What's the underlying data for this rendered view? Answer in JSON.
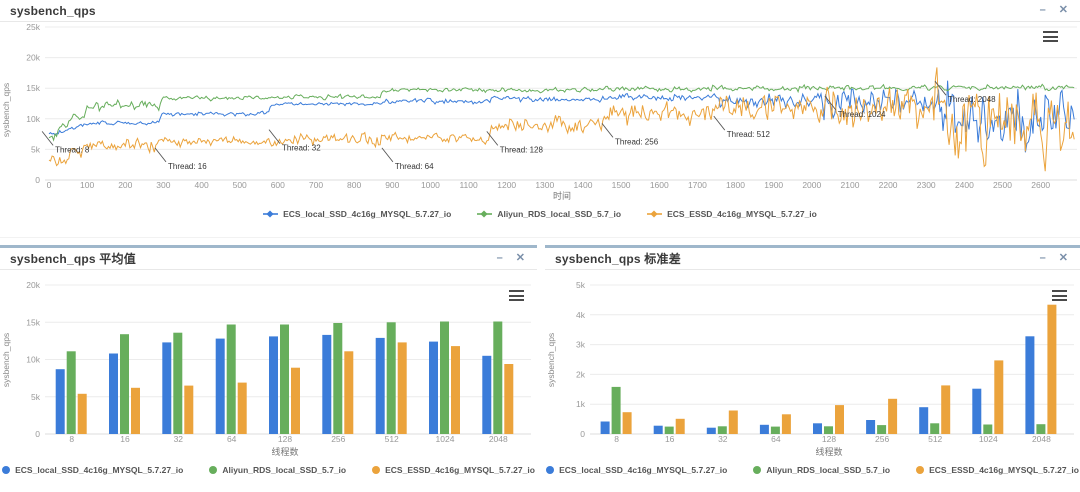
{
  "header_icons": {
    "minimize": "–",
    "close": "✕"
  },
  "colors": {
    "blue": "#3b7cd9",
    "green": "#67ae5c",
    "orange": "#eba33c",
    "panel_border_top": "#9fb7cb",
    "grid": "#ececec",
    "axis_zero_line": "#dddddd",
    "axis_text": "#999999",
    "title_text": "#3a3a3a",
    "legend_text": "#555555",
    "annotation_text": "#333333",
    "header_icon": "#7a8fa9",
    "menu_icon": "#4a4a4a"
  },
  "panels": {
    "top": {
      "title": "sysbench_qps"
    },
    "bottom_left": {
      "title": "sysbench_qps 平均值"
    },
    "bottom_right": {
      "title": "sysbench_qps 标准差"
    }
  },
  "chart_data": [
    {
      "type": "line",
      "panel": "top",
      "title": "sysbench_qps",
      "xlabel": "时间",
      "ylabel": "sysbench_qps",
      "xlim": [
        0,
        2690
      ],
      "ylim": [
        0,
        25000
      ],
      "grid": true,
      "legend_position": "bottom",
      "x_ticks": [
        0,
        100,
        200,
        300,
        400,
        500,
        600,
        700,
        800,
        900,
        1000,
        1100,
        1200,
        1300,
        1400,
        1500,
        1600,
        1700,
        1800,
        1900,
        2000,
        2100,
        2200,
        2300,
        2400,
        2500,
        2600
      ],
      "y_ticks": [
        0,
        5000,
        10000,
        15000,
        20000,
        25000
      ],
      "y_tick_labels": [
        "0",
        "5k",
        "10k",
        "15k",
        "20k",
        "25k"
      ],
      "thread_steps": [
        8,
        16,
        32,
        64,
        128,
        256,
        512,
        1024,
        2048
      ],
      "segment_start_times": [
        0,
        290,
        580,
        870,
        1160,
        1450,
        1740,
        2030,
        2320
      ],
      "series": [
        {
          "name": "ECS_local_SSD_4c16g_MYSQL_5.7.27_io",
          "color_key": "blue",
          "start_value": 7500,
          "segment_means": [
            9300,
            10900,
            12400,
            12900,
            13200,
            13400,
            13000,
            12500,
            10600
          ],
          "segment_stds": [
            250,
            280,
            210,
            310,
            360,
            470,
            900,
            1520,
            3280
          ]
        },
        {
          "name": "Aliyun_RDS_local_SSD_5.7_io",
          "color_key": "green",
          "start_value": 7000,
          "segment_means": [
            12200,
            13400,
            13600,
            14700,
            14700,
            14900,
            15000,
            15100,
            15100
          ],
          "segment_stds": [
            600,
            250,
            260,
            250,
            260,
            300,
            360,
            320,
            330
          ]
        },
        {
          "name": "ECS_ESSD_4c16g_MYSQL_5.7.27_io",
          "color_key": "orange",
          "start_value": 2500,
          "segment_means": [
            5600,
            6200,
            6500,
            6900,
            8900,
            11100,
            12300,
            11800,
            9400
          ],
          "segment_stds": [
            700,
            510,
            790,
            660,
            970,
            1180,
            1630,
            2470,
            4340
          ]
        }
      ],
      "annotations": [
        {
          "label": "Thread: 8",
          "t": 16,
          "v": 5000
        },
        {
          "label": "Thread: 16",
          "t": 312,
          "v": 2300
        },
        {
          "label": "Thread: 32",
          "t": 611,
          "v": 5300
        },
        {
          "label": "Thread: 64",
          "t": 907,
          "v": 2300
        },
        {
          "label": "Thread: 128",
          "t": 1182,
          "v": 5000
        },
        {
          "label": "Thread: 256",
          "t": 1484,
          "v": 6300
        },
        {
          "label": "Thread: 512",
          "t": 1777,
          "v": 7500
        },
        {
          "label": "Thread: 1024",
          "t": 2068,
          "v": 10800
        },
        {
          "label": "Thread: 2048",
          "t": 2357,
          "v": 13200
        }
      ]
    },
    {
      "type": "bar",
      "panel": "bottom_left",
      "title": "sysbench_qps 平均值",
      "xlabel": "线程数",
      "ylabel": "sysbench_qps",
      "ylim": [
        0,
        20000
      ],
      "grid": true,
      "legend_position": "bottom",
      "categories": [
        "8",
        "16",
        "32",
        "64",
        "128",
        "256",
        "512",
        "1024",
        "2048"
      ],
      "y_ticks": [
        0,
        5000,
        10000,
        15000,
        20000
      ],
      "y_tick_labels": [
        "0",
        "5k",
        "10k",
        "15k",
        "20k"
      ],
      "series": [
        {
          "name": "ECS_local_SSD_4c16g_MYSQL_5.7.27_io",
          "color_key": "blue",
          "values": [
            8700,
            10800,
            12300,
            12800,
            13100,
            13300,
            12900,
            12400,
            10500
          ]
        },
        {
          "name": "Aliyun_RDS_local_SSD_5.7_io",
          "color_key": "green",
          "values": [
            11100,
            13400,
            13600,
            14700,
            14700,
            14900,
            15000,
            15100,
            15100
          ]
        },
        {
          "name": "ECS_ESSD_4c16g_MYSQL_5.7.27_io",
          "color_key": "orange",
          "values": [
            5400,
            6200,
            6500,
            6900,
            8900,
            11100,
            12300,
            11800,
            9400
          ]
        }
      ]
    },
    {
      "type": "bar",
      "panel": "bottom_right",
      "title": "sysbench_qps 标准差",
      "xlabel": "线程数",
      "ylabel": "sysbench_qps",
      "ylim": [
        0,
        5000
      ],
      "grid": true,
      "legend_position": "bottom",
      "categories": [
        "8",
        "16",
        "32",
        "64",
        "128",
        "256",
        "512",
        "1024",
        "2048"
      ],
      "y_ticks": [
        0,
        1000,
        2000,
        3000,
        4000,
        5000
      ],
      "y_tick_labels": [
        "0",
        "1k",
        "2k",
        "3k",
        "4k",
        "5k"
      ],
      "series": [
        {
          "name": "ECS_local_SSD_4c16g_MYSQL_5.7.27_io",
          "color_key": "blue",
          "values": [
            420,
            280,
            210,
            310,
            360,
            470,
            900,
            1520,
            3280
          ]
        },
        {
          "name": "Aliyun_RDS_local_SSD_5.7_io",
          "color_key": "green",
          "values": [
            1580,
            250,
            260,
            250,
            260,
            300,
            360,
            320,
            330
          ]
        },
        {
          "name": "ECS_ESSD_4c16g_MYSQL_5.7.27_io",
          "color_key": "orange",
          "values": [
            730,
            510,
            790,
            660,
            970,
            1180,
            1630,
            2470,
            4340
          ]
        }
      ]
    }
  ]
}
